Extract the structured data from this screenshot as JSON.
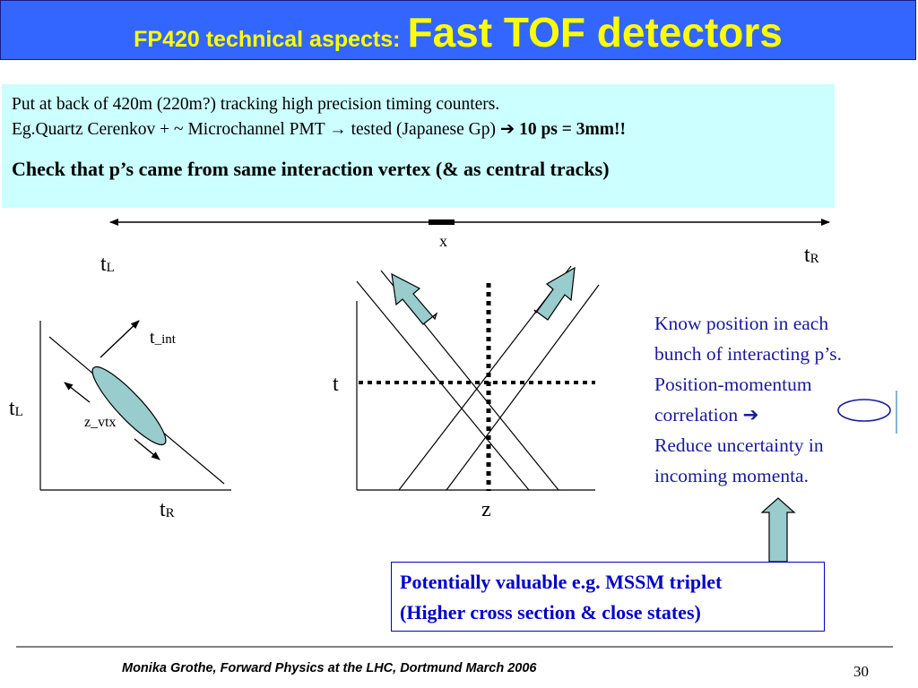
{
  "slide": {
    "title_prefix": "FP420 technical aspects:",
    "title_main": "Fast TOF detectors",
    "info": {
      "line1": "Put at back of 420m (220m?) tracking high precision timing counters.",
      "line2_a": "Eg.Quartz Cerenkov + ~ Microchannel PMT",
      "line2_arrow": "→",
      "line2_b": "tested (Japanese Gp)",
      "line2_arrow2": "➔",
      "line2_bold": "10 ps = 3mm!!",
      "line3": "Check that p’s came from same interaction vertex (& as central tracks)"
    },
    "axis_labels": {
      "x": "x",
      "tL_left_base": "t",
      "tL_left_sub": "L",
      "tR_right_base": "t",
      "tR_right_sub": "R"
    },
    "left_plot": {
      "t_int_base": "t",
      "t_int_sub": "_int",
      "tL_axis_base": "t",
      "tL_axis_sub": "L",
      "z_vtx": "z_vtx",
      "tR_axis_base": "t",
      "tR_axis_sub": "R"
    },
    "middle_plot": {
      "t_label": "t",
      "z_label": "z"
    },
    "know_text": [
      "Know position in each",
      "bunch of interacting p’s.",
      "Position-momentum",
      "correlation ➔",
      "Reduce uncertainty in",
      "incoming momenta."
    ],
    "valuable": {
      "line1": "Potentially valuable e.g. MSSM triplet",
      "line2": "(Higher cross section & close states)"
    },
    "footer": "Monika Grothe, Forward Physics at the LHC, Dortmund March 2006",
    "page_number": "30"
  }
}
